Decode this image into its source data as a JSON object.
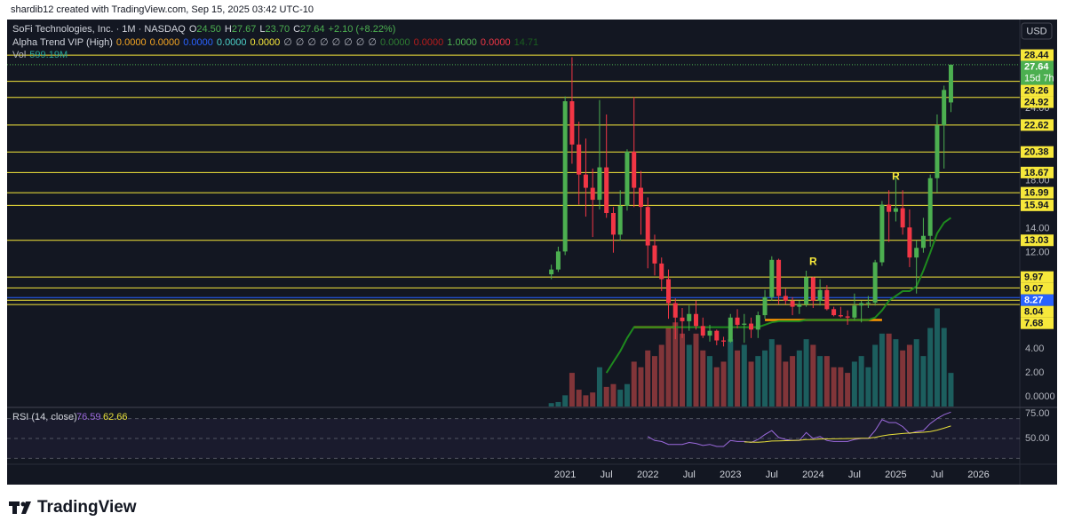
{
  "chart_data": {
    "type": "candlestick",
    "x": [
      "2020-11",
      "2020-12",
      "2021-01",
      "2021-02",
      "2021-03",
      "2021-04",
      "2021-05",
      "2021-06",
      "2021-07",
      "2021-08",
      "2021-09",
      "2021-10",
      "2021-11",
      "2021-12",
      "2022-01",
      "2022-02",
      "2022-03",
      "2022-04",
      "2022-05",
      "2022-06",
      "2022-07",
      "2022-08",
      "2022-09",
      "2022-10",
      "2022-11",
      "2022-12",
      "2023-01",
      "2023-02",
      "2023-03",
      "2023-04",
      "2023-05",
      "2023-06",
      "2023-07",
      "2023-08",
      "2023-09",
      "2023-10",
      "2023-11",
      "2023-12",
      "2024-01",
      "2024-02",
      "2024-03",
      "2024-04",
      "2024-05",
      "2024-06",
      "2024-07",
      "2024-08",
      "2024-09",
      "2024-10",
      "2024-11",
      "2024-12",
      "2025-01",
      "2025-02",
      "2025-03",
      "2025-04",
      "2025-05",
      "2025-06",
      "2025-07",
      "2025-08",
      "2025-09"
    ],
    "open": [
      10.2,
      10.6,
      12.1,
      24.6,
      21.0,
      18.5,
      17.4,
      16.4,
      19.1,
      15.3,
      13.5,
      15.9,
      20.4,
      17.4,
      15.8,
      12.6,
      11.1,
      9.8,
      7.8,
      6.6,
      6.3,
      6.9,
      5.9,
      5.1,
      5.5,
      4.7,
      4.6,
      6.6,
      6.0,
      6.1,
      5.6,
      6.8,
      8.3,
      11.4,
      8.4,
      8.0,
      7.5,
      7.7,
      9.95,
      8.0,
      8.9,
      7.3,
      6.8,
      6.7,
      6.6,
      7.6,
      7.8,
      7.85,
      11.2,
      16.0,
      15.4,
      15.7,
      14.1,
      11.6,
      12.4,
      13.4,
      18.2,
      22.6,
      24.5
    ],
    "high": [
      11.0,
      12.5,
      25.0,
      28.26,
      22.9,
      21.5,
      19.0,
      24.7,
      23.5,
      15.8,
      17.2,
      20.6,
      24.95,
      18.8,
      16.6,
      13.5,
      11.6,
      10.6,
      8.2,
      7.4,
      7.6,
      8.0,
      6.6,
      6.0,
      5.6,
      5.0,
      6.9,
      7.3,
      6.9,
      6.6,
      7.1,
      8.9,
      11.7,
      11.5,
      9.0,
      8.3,
      8.0,
      10.5,
      10.0,
      9.8,
      9.3,
      7.5,
      7.5,
      7.2,
      8.6,
      8.0,
      8.4,
      11.4,
      16.3,
      17.2,
      18.4,
      17.2,
      15.6,
      13.0,
      14.9,
      18.5,
      23.5,
      25.9,
      27.67
    ],
    "low": [
      9.8,
      10.4,
      11.8,
      19.4,
      16.0,
      15.0,
      13.3,
      15.6,
      14.9,
      12.0,
      13.0,
      15.5,
      15.8,
      13.5,
      10.7,
      10.1,
      8.8,
      6.5,
      4.8,
      4.9,
      5.5,
      5.6,
      4.9,
      4.6,
      4.3,
      4.2,
      4.5,
      5.7,
      4.5,
      4.9,
      4.9,
      6.5,
      8.0,
      7.7,
      7.7,
      6.8,
      6.9,
      7.5,
      7.4,
      7.6,
      7.2,
      6.7,
      6.6,
      6.0,
      6.4,
      6.2,
      7.4,
      7.6,
      10.9,
      12.9,
      14.6,
      13.5,
      10.8,
      8.6,
      12.0,
      12.5,
      17.0,
      19.0,
      23.7
    ],
    "close": [
      10.6,
      12.1,
      24.6,
      21.0,
      18.5,
      17.4,
      16.4,
      19.1,
      15.3,
      13.5,
      15.9,
      20.4,
      17.4,
      15.81,
      12.6,
      11.1,
      9.8,
      7.8,
      6.6,
      6.3,
      6.9,
      5.9,
      5.1,
      5.5,
      4.7,
      4.6,
      6.6,
      6.0,
      6.1,
      5.6,
      6.8,
      8.3,
      11.4,
      8.4,
      8.0,
      7.5,
      7.7,
      9.95,
      8.0,
      8.9,
      7.3,
      6.8,
      6.7,
      6.6,
      7.6,
      7.8,
      7.85,
      11.2,
      16.0,
      15.4,
      15.7,
      14.1,
      11.6,
      12.4,
      13.4,
      18.2,
      22.6,
      25.54,
      27.64
    ],
    "volume": [
      60,
      80,
      200,
      600,
      300,
      200,
      250,
      700,
      350,
      400,
      300,
      400,
      800,
      700,
      1000,
      900,
      1100,
      1400,
      1500,
      1300,
      1100,
      1300,
      1000,
      900,
      700,
      800,
      1200,
      1000,
      1100,
      800,
      900,
      1000,
      1200,
      1100,
      800,
      900,
      1000,
      1200,
      1100,
      900,
      900,
      700,
      700,
      600,
      800,
      900,
      700,
      1100,
      1300,
      1300,
      1200,
      1000,
      1100,
      1200,
      900,
      1400,
      1750,
      1400,
      599.19
    ],
    "volume_lim": [
      0,
      6900
    ],
    "colors": {
      "up": "#4caf50",
      "down": "#f23645",
      "volume_up": "#26a69a",
      "volume_down": "#ef5350"
    },
    "alpha_trend": {
      "color": "#1e8a1e",
      "values": [
        null,
        null,
        null,
        null,
        null,
        null,
        null,
        null,
        2.0,
        2.9,
        3.8,
        4.9,
        5.8,
        5.8,
        5.8,
        5.8,
        5.8,
        5.8,
        5.8,
        5.8,
        5.8,
        5.8,
        5.8,
        5.8,
        5.8,
        5.8,
        5.8,
        5.8,
        5.8,
        5.8,
        5.8,
        6.0,
        6.2,
        6.3,
        6.3,
        6.3,
        6.3,
        6.4,
        6.4,
        6.4,
        6.4,
        6.4,
        6.4,
        6.4,
        6.4,
        6.4,
        6.4,
        6.6,
        7.2,
        8.0,
        8.4,
        8.8,
        8.8,
        9.2,
        10.5,
        12.0,
        13.6,
        14.5,
        14.9
      ]
    },
    "orange_levels": [
      {
        "value": 5.8,
        "x": [
          "2021-11",
          "2022-05"
        ],
        "color": "#ff9800"
      },
      {
        "value": 6.4,
        "x": [
          "2023-06",
          "2024-11"
        ],
        "color": "#ff9800"
      }
    ],
    "levels": [
      {
        "value": 28.44,
        "color": "#f7e83b"
      },
      {
        "value": 26.26,
        "color": "#f7e83b"
      },
      {
        "value": 24.92,
        "color": "#f7e83b"
      },
      {
        "value": 22.62,
        "color": "#f7e83b"
      },
      {
        "value": 20.38,
        "color": "#f7e83b"
      },
      {
        "value": 18.67,
        "color": "#f7e83b"
      },
      {
        "value": 16.99,
        "color": "#f7e83b"
      },
      {
        "value": 15.94,
        "color": "#f7e83b"
      },
      {
        "value": 13.03,
        "color": "#f7e83b"
      },
      {
        "value": 9.97,
        "color": "#f7e83b"
      },
      {
        "value": 9.07,
        "color": "#f7e83b"
      },
      {
        "value": 8.27,
        "color": "#2962ff"
      },
      {
        "value": 8.04,
        "color": "#f7e83b"
      },
      {
        "value": 7.68,
        "color": "#f7e83b"
      }
    ],
    "annotations": [
      {
        "text": "R",
        "x": "2024-01",
        "y": 11.2
      },
      {
        "text": "R",
        "x": "2025-01",
        "y": 18.3
      }
    ],
    "countdown": "15d 7h",
    "currency": "USD",
    "xlim": [
      "2014-04",
      "2026-07"
    ],
    "xticks": [
      {
        "value": "2021-01",
        "label": "2021"
      },
      {
        "value": "2021-07",
        "label": "Jul"
      },
      {
        "value": "2022-01",
        "label": "2022"
      },
      {
        "value": "2022-07",
        "label": "Jul"
      },
      {
        "value": "2023-01",
        "label": "2023"
      },
      {
        "value": "2023-07",
        "label": "Jul"
      },
      {
        "value": "2024-01",
        "label": "2024"
      },
      {
        "value": "2024-07",
        "label": "Jul"
      },
      {
        "value": "2025-01",
        "label": "2025"
      },
      {
        "value": "2025-07",
        "label": "Jul"
      },
      {
        "value": "2026-01",
        "label": "2026"
      }
    ],
    "ylim": [
      -0.8,
      31.4
    ],
    "yticks": [
      {
        "value": 24,
        "label": "24.00"
      },
      {
        "value": 18,
        "label": "18.00"
      },
      {
        "value": 14,
        "label": "14.00"
      },
      {
        "value": 12,
        "label": "12.00"
      },
      {
        "value": 4,
        "label": "4.00"
      },
      {
        "value": 2,
        "label": "2.00"
      },
      {
        "value": 0,
        "label": "0.0000"
      }
    ],
    "rsi": {
      "title": "RSI (14, close)",
      "color": "#9c6ade",
      "ma_color": "#e8e03a",
      "ylim": [
        26.8,
        80.4
      ],
      "yticks": [
        {
          "value": 75,
          "label": "75.00"
        },
        {
          "value": 50,
          "label": "50.00"
        }
      ],
      "bands": [
        70,
        50,
        30
      ],
      "values": [
        null,
        null,
        null,
        null,
        null,
        null,
        null,
        null,
        null,
        null,
        null,
        null,
        null,
        null,
        52,
        48,
        47,
        44,
        44,
        44,
        46,
        45,
        43,
        44,
        42,
        42,
        48,
        47,
        47,
        46,
        49,
        54,
        58,
        51,
        49,
        48,
        48,
        56,
        50,
        52,
        48,
        47,
        47,
        47,
        49,
        50,
        50,
        58,
        69,
        66,
        66,
        62,
        55,
        57,
        58,
        65,
        70,
        74,
        76.59
      ],
      "ma": [
        null,
        null,
        null,
        null,
        null,
        null,
        null,
        null,
        null,
        null,
        null,
        null,
        null,
        null,
        null,
        null,
        null,
        null,
        null,
        null,
        null,
        null,
        null,
        null,
        null,
        null,
        null,
        null,
        46.5,
        46.4,
        46.3,
        46.6,
        47.4,
        47.6,
        47.8,
        48.0,
        48.2,
        48.9,
        49.0,
        49.5,
        49.6,
        49.7,
        49.8,
        49.9,
        50.0,
        50.2,
        50.4,
        51.2,
        52.6,
        53.7,
        54.4,
        55.0,
        55.5,
        55.9,
        56.3,
        57.0,
        58.4,
        60.4,
        62.66
      ]
    }
  },
  "header": {
    "credit": "shardib12 created with TradingView.com, Sep 15, 2025 03:42 UTC-10",
    "symbol": "SoFi Technologies, Inc. · 1M · NASDAQ",
    "ohlc": [
      {
        "label": "O",
        "value": "24.50"
      },
      {
        "label": "H",
        "value": "27.67"
      },
      {
        "label": "L",
        "value": "23.70"
      },
      {
        "label": "C",
        "value": "27.64"
      }
    ],
    "change": "+2.10 (+8.22%)",
    "indicator": {
      "name": "Alpha Trend VIP (High)",
      "values": [
        {
          "text": "0.0000",
          "color": "#f5a623"
        },
        {
          "text": "0.0000",
          "color": "#f5a623"
        },
        {
          "text": "0.0000",
          "color": "#2962ff"
        },
        {
          "text": "0.0000",
          "color": "#4dd0c8"
        },
        {
          "text": "0.0000",
          "color": "#f7e83b"
        },
        {
          "text": "∅",
          "color": "#b2b5be"
        },
        {
          "text": "∅",
          "color": "#b2b5be"
        },
        {
          "text": "∅",
          "color": "#b2b5be"
        },
        {
          "text": "∅",
          "color": "#b2b5be"
        },
        {
          "text": "∅",
          "color": "#b2b5be"
        },
        {
          "text": "∅",
          "color": "#b2b5be"
        },
        {
          "text": "∅",
          "color": "#b2b5be"
        },
        {
          "text": "∅",
          "color": "#b2b5be"
        },
        {
          "text": "0.0000",
          "color": "#2e7d32"
        },
        {
          "text": "0.0000",
          "color": "#b71c1c"
        },
        {
          "text": "1.0000",
          "color": "#4caf50"
        },
        {
          "text": "0.0000",
          "color": "#f23645"
        },
        {
          "text": "14.71",
          "color": "#1b5e20"
        }
      ]
    },
    "volume": {
      "name": "Vol",
      "value": "599.19M"
    }
  },
  "footer": {
    "brand": "TradingView"
  }
}
